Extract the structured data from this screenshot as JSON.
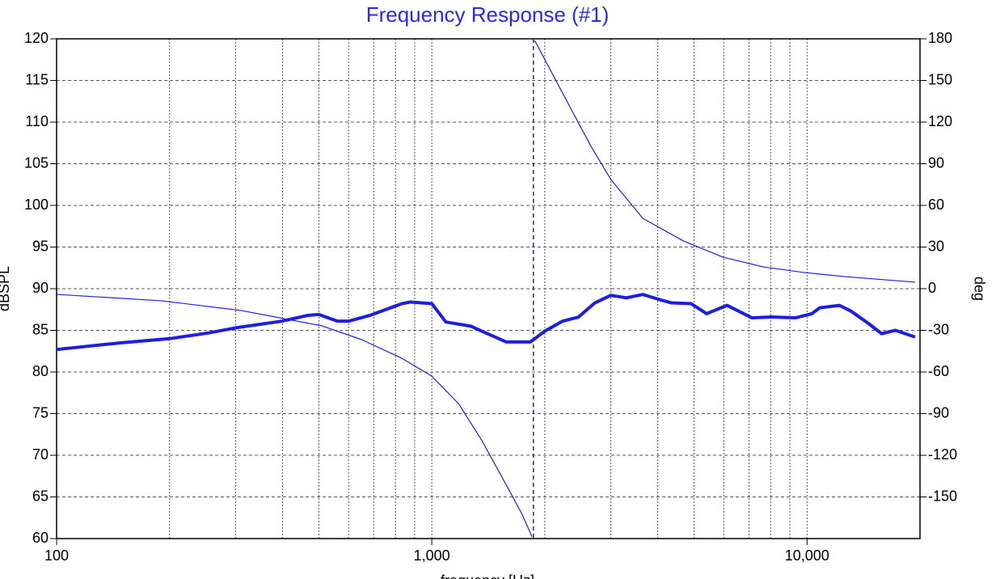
{
  "chart_data": {
    "type": "line",
    "title": "Frequency Response (#1)",
    "x_label": "frequency [Hz]",
    "y_label": "dBSPL",
    "y2_label": "deg",
    "log_x": true,
    "grid": true,
    "xlim": [
      100,
      20000
    ],
    "xticks": [
      100,
      {
        "value": 1000,
        "label": "1,000"
      },
      {
        "value": 10000,
        "label": "10,000"
      }
    ],
    "x_minor_ticks": [
      200,
      300,
      400,
      500,
      600,
      700,
      800,
      900,
      2000,
      3000,
      4000,
      5000,
      6000,
      7000,
      8000,
      9000
    ],
    "ylim": [
      60,
      120
    ],
    "yticks": [
      60,
      65,
      70,
      75,
      80,
      85,
      90,
      95,
      100,
      105,
      110,
      115,
      120
    ],
    "y2lim": [
      -180,
      180
    ],
    "y2ticks": [
      -150,
      -120,
      -90,
      -60,
      -30,
      0,
      30,
      60,
      90,
      120,
      150,
      180
    ],
    "series": [
      {
        "color": "#1e1ee0",
        "line_width": 4,
        "axis": "y",
        "x": [
          100,
          148,
          200,
          255,
          300,
          398,
          468,
          500,
          560,
          600,
          684,
          832,
          875,
          1000,
          1090,
          1270,
          1360,
          1580,
          1830,
          2000,
          2230,
          2460,
          2720,
          3000,
          3300,
          3650,
          4040,
          4350,
          4910,
          5400,
          6120,
          7130,
          8050,
          9300,
          10300,
          10800,
          12200,
          13100,
          14600,
          15800,
          17200,
          19400
        ],
        "values": [
          82.7,
          83.5,
          84.0,
          84.7,
          85.3,
          86.1,
          86.8,
          86.9,
          86.1,
          86.1,
          86.8,
          88.2,
          88.4,
          88.2,
          86.0,
          85.5,
          84.9,
          83.6,
          83.6,
          84.9,
          86.1,
          86.6,
          88.3,
          89.2,
          88.9,
          89.3,
          88.7,
          88.3,
          88.2,
          87.0,
          88.0,
          86.5,
          86.6,
          86.5,
          87.0,
          87.7,
          88.0,
          87.3,
          85.8,
          84.6,
          85.0,
          84.2
        ]
      },
      {
        "color": "#1e1ee0",
        "line_width": 1.2,
        "axis": "y2",
        "x": [
          100,
          190,
          310,
          510,
          650,
          830,
          1000,
          1180,
          1360,
          1580,
          1740,
          1850,
          1880,
          2230,
          2650,
          3000,
          3650,
          4680,
          5970,
          7640,
          9800,
          12600,
          19400
        ],
        "values": [
          -4.1,
          -8.7,
          -15.7,
          -26.8,
          -36.7,
          -50,
          -63,
          -83,
          -109.5,
          -141.5,
          -162.5,
          -178.8,
          178.8,
          141,
          103,
          78.6,
          50.7,
          34.4,
          22.7,
          15.7,
          11.7,
          8.7,
          4.7
        ]
      }
    ]
  }
}
